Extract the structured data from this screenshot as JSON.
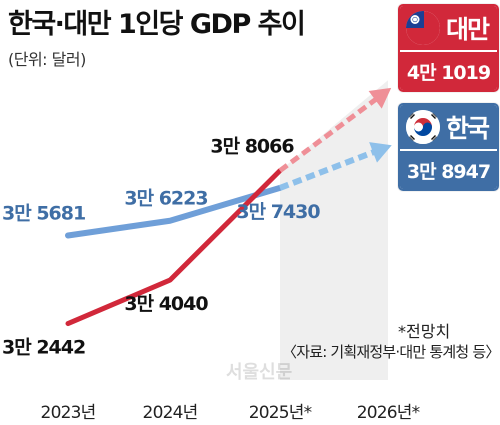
{
  "title": "한국·대만 1인당 GDP 추이",
  "unit_note": "(단위: 달러)",
  "legend": {
    "taiwan": {
      "name": "대만",
      "latest_value": "4만 1019",
      "flag_icon": "taiwan-flag-icon",
      "color": "#d1283a"
    },
    "korea": {
      "name": "한국",
      "latest_value": "3만 8947",
      "flag_icon": "korea-flag-icon",
      "color": "#3f6ea5"
    }
  },
  "footnote": "*전망치",
  "source": "〈자료: 기획재정부·대만 통계청 등〉",
  "watermark": "서울신문",
  "chart_data": {
    "type": "line",
    "categories": [
      "2023년",
      "2024년",
      "2025년*",
      "2026년*"
    ],
    "forecast_from_index": 2,
    "ylim": [
      30000,
      42500
    ],
    "series": [
      {
        "name": "한국",
        "color": "#6f9fd8",
        "values": [
          35681,
          36223,
          37430,
          38947
        ],
        "labels": [
          "3만 5681",
          "3만 6223",
          "3만 7430",
          "3만 8947"
        ]
      },
      {
        "name": "대만",
        "color": "#d1283a",
        "values": [
          32442,
          34040,
          38066,
          41019
        ],
        "labels": [
          "3만 2442",
          "3만 4040",
          "3만 8066",
          "4만 1019"
        ]
      }
    ]
  }
}
